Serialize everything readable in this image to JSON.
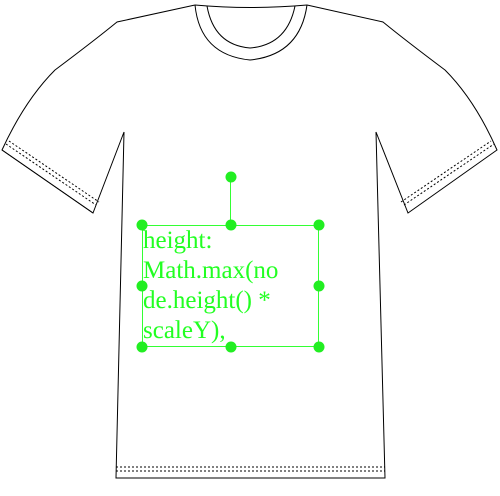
{
  "canvas": {
    "product": "t-shirt",
    "background_color": "#ffffff",
    "outline_color": "#000000"
  },
  "text_layer": {
    "lines": [
      "height:",
      "Math.max(no",
      "de.height() *",
      "scaleY),"
    ],
    "color": "#22ff22",
    "selected": true
  },
  "selection": {
    "color": "#33ff33",
    "handles": [
      "rotate-handle",
      "top-left-handle",
      "top-center-handle",
      "top-right-handle",
      "middle-left-handle",
      "middle-right-handle",
      "bottom-left-handle",
      "bottom-center-handle",
      "bottom-right-handle"
    ]
  }
}
